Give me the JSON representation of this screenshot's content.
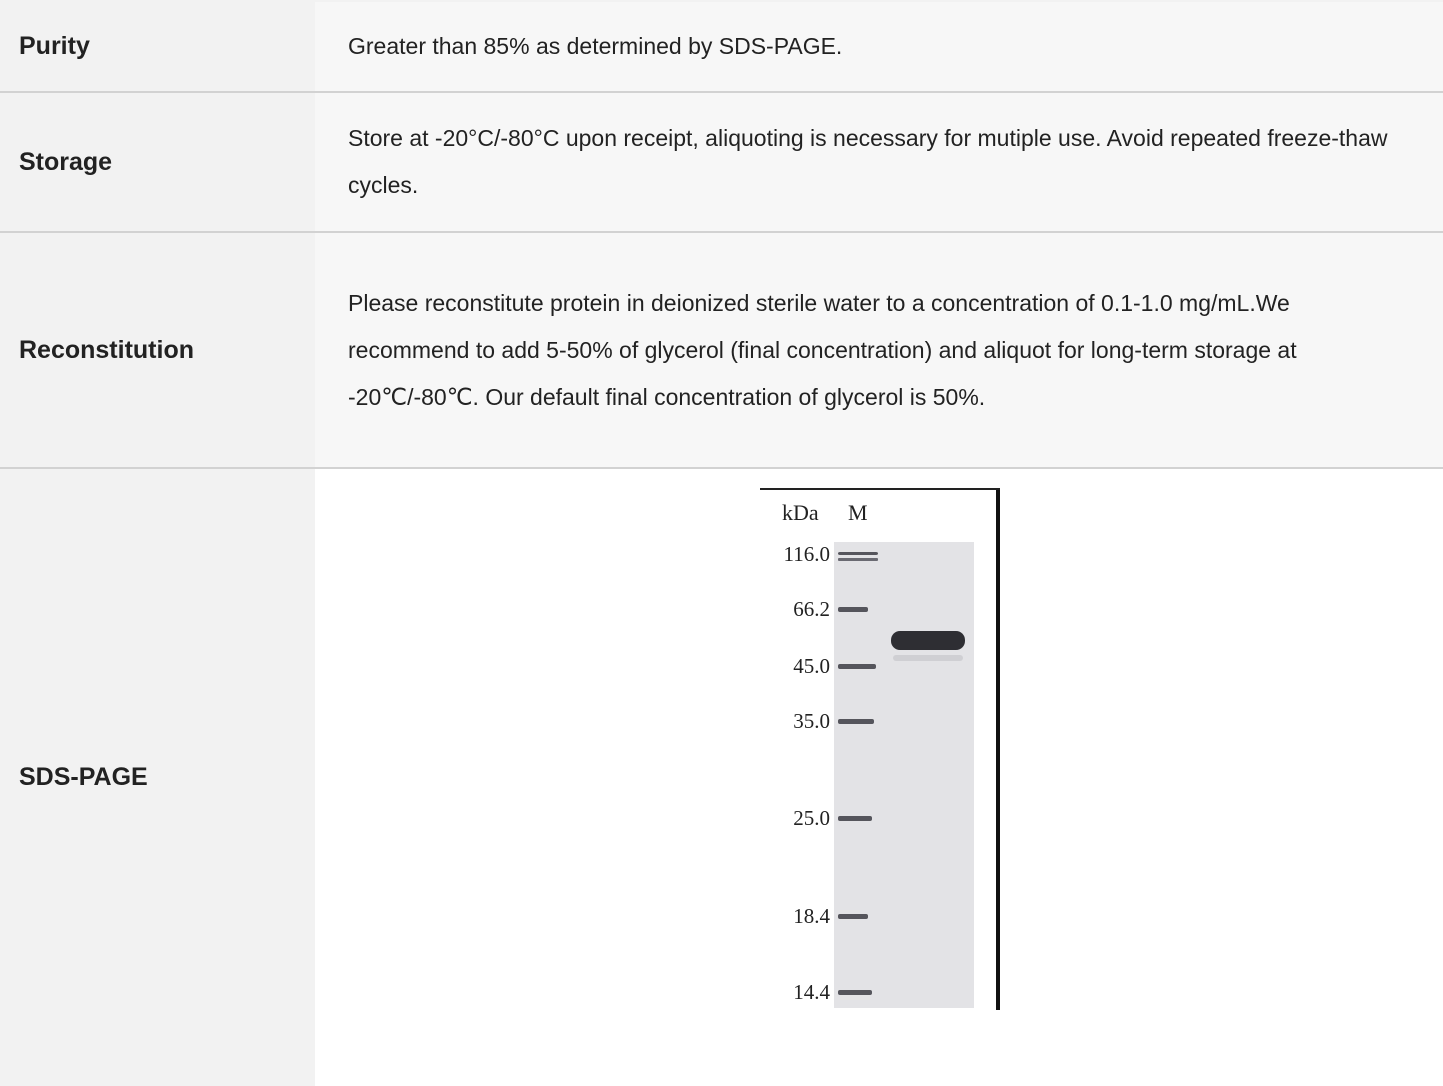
{
  "rows": [
    {
      "label": "Purity",
      "value": "Greater than 85% as determined by SDS-PAGE."
    },
    {
      "label": "Storage",
      "value": "Store at -20°C/-80°C upon receipt, aliquoting is necessary for mutiple use. Avoid repeated freeze-thaw cycles."
    },
    {
      "label": "Reconstitution",
      "value": "Please reconstitute protein in deionized sterile water to a concentration of 0.1-1.0 mg/mL.We recommend to add 5-50% of glycerol (final concentration) and aliquot for long-term storage at -20℃/-80℃. Our default final concentration of glycerol is 50%."
    },
    {
      "label": "SDS-PAGE"
    }
  ],
  "gel": {
    "unit_label": "kDa",
    "marker_lane_label": "M",
    "markers": [
      "116.0",
      "66.2",
      "45.0",
      "35.0",
      "25.0",
      "18.4",
      "14.4"
    ]
  }
}
